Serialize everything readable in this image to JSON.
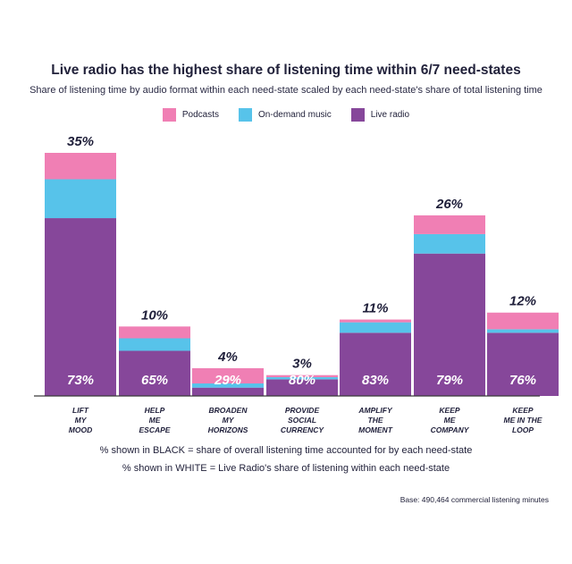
{
  "title": "Live radio has the highest share of listening time within 6/7 need-states",
  "subtitle": "Share of listening time by audio format within each need-state scaled by each need-state's share of total listening time",
  "legend": [
    {
      "label": "Podcasts",
      "color": "#f07fb4"
    },
    {
      "label": "On-demand music",
      "color": "#57c3ea"
    },
    {
      "label": "Live radio",
      "color": "#86479a"
    }
  ],
  "notes": {
    "black": "% shown in BLACK = share of overall listening time accounted for by each need-state",
    "white": "% shown in WHITE = Live Radio's share of listening within each need-state"
  },
  "base": "Base: 490,464 commercial listening minutes",
  "chart_data": {
    "type": "bar",
    "stacked": true,
    "categories": [
      [
        "LIFT",
        "MY",
        "MOOD"
      ],
      [
        "HELP",
        "ME",
        "ESCAPE"
      ],
      [
        "BROADEN",
        "MY",
        "HORIZONS"
      ],
      [
        "PROVIDE",
        "SOCIAL",
        "CURRENCY"
      ],
      [
        "AMPLIFY",
        "THE",
        "MOMENT"
      ],
      [
        "KEEP",
        "ME",
        "COMPANY"
      ],
      [
        "KEEP",
        "ME IN THE",
        "LOOP"
      ]
    ],
    "totals": [
      35,
      10,
      4,
      3,
      11,
      26,
      12
    ],
    "total_labels": [
      "35%",
      "10%",
      "4%",
      "3%",
      "11%",
      "26%",
      "12%"
    ],
    "live_radio_share_labels": [
      "73%",
      "65%",
      "29%",
      "80%",
      "83%",
      "79%",
      "76%"
    ],
    "series": [
      {
        "name": "Live radio",
        "color": "#86479a",
        "values": [
          25.6,
          6.5,
          1.2,
          2.4,
          9.1,
          20.5,
          9.1
        ]
      },
      {
        "name": "On-demand music",
        "color": "#57c3ea",
        "values": [
          5.6,
          1.8,
          0.6,
          0.3,
          1.5,
          2.8,
          0.5
        ]
      },
      {
        "name": "Podcasts",
        "color": "#f07fb4",
        "values": [
          3.8,
          1.7,
          2.2,
          0.3,
          0.4,
          2.7,
          2.4
        ]
      }
    ],
    "ylim": [
      0,
      35
    ]
  }
}
